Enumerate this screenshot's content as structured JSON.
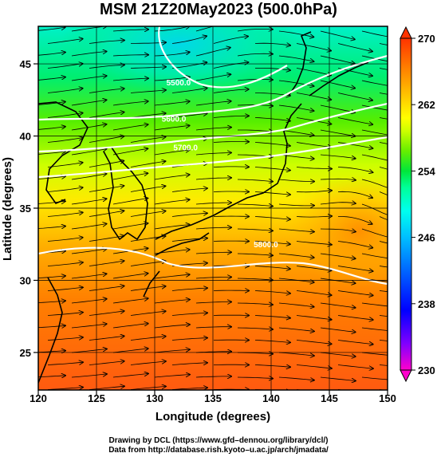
{
  "title": "MSM 21Z20May2023 (500.0hPa)",
  "axes": {
    "xlabel": "Longitude (degrees)",
    "ylabel": "Latitude  (degrees)",
    "x_ticks": [
      "120",
      "125",
      "130",
      "135",
      "140",
      "145",
      "150"
    ],
    "y_ticks": [
      "25",
      "30",
      "35",
      "40",
      "45"
    ]
  },
  "chart_data": {
    "type": "heatmap",
    "description_units": "temperature (K) shading with wind streamlines and geopotential height contours",
    "xlim": [
      120,
      150
    ],
    "ylim": [
      22.4,
      47.6
    ],
    "x_ticks": [
      120,
      125,
      130,
      135,
      140,
      145,
      150
    ],
    "y_ticks": [
      25,
      30,
      35,
      40,
      45
    ],
    "colorbar": {
      "min": 230,
      "max": 270,
      "tick_labels": [
        "270",
        "262",
        "254",
        "246",
        "238",
        "230"
      ],
      "colors": [
        "#ff00cc",
        "#8000ff",
        "#0000ff",
        "#0066ff",
        "#00bfff",
        "#00ffee",
        "#00ff99",
        "#00e63a",
        "#66ee00",
        "#ccff00",
        "#ffff00",
        "#ffcc00",
        "#ff8800",
        "#ff3300"
      ]
    },
    "contour_labels": [
      {
        "text": "5500.0",
        "lon": 131.0,
        "lat": 43.5
      },
      {
        "text": "5600.0",
        "lon": 130.6,
        "lat": 41.0
      },
      {
        "text": "5700.0",
        "lon": 131.6,
        "lat": 39.0
      },
      {
        "text": "5800.0",
        "lon": 138.5,
        "lat": 32.3
      }
    ]
  },
  "credits": {
    "line1": "Drawing by DCL (https://www.gfd–dennou.org/library/dcl/)",
    "line2": "Data from http://database.rish.kyoto–u.ac.jp/arch/jmadata/"
  }
}
